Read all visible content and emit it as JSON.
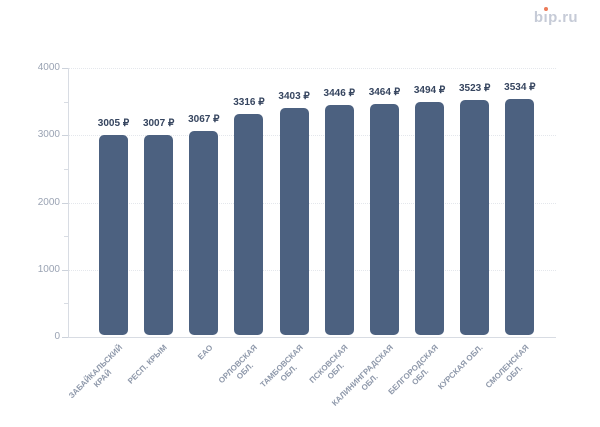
{
  "logo": {
    "text": "bip.ru",
    "parts": [
      "b",
      "ı",
      "p.ru"
    ],
    "letter_color": "#c6cbd7",
    "dot_color": "#ec7b59"
  },
  "chart_data": {
    "type": "bar",
    "title": "",
    "xlabel": "",
    "ylabel": "",
    "categories": [
      "ЗАБАЙКАЛЬСКИЙ КРАЙ",
      "РЕСП. КРЫМ",
      "ЕАО",
      "ОРЛОВСКАЯ ОБЛ.",
      "ТАМБОВСКАЯ ОБЛ.",
      "ПСКОВСКАЯ ОБЛ.",
      "КАЛИНИНГРАДСКАЯ ОБЛ.",
      "БЕЛГОРОДСКАЯ ОБЛ.",
      "КУРСКАЯ ОБЛ.",
      "СМОЛЕНСКАЯ ОБЛ."
    ],
    "category_lines": [
      [
        "ЗАБАЙКАЛЬСКИЙ",
        "КРАЙ"
      ],
      [
        "РЕСП. КРЫМ"
      ],
      [
        "ЕАО"
      ],
      [
        "ОРЛОВСКАЯ",
        "ОБЛ."
      ],
      [
        "ТАМБОВСКАЯ",
        "ОБЛ."
      ],
      [
        "ПСКОВСКАЯ",
        "ОБЛ."
      ],
      [
        "КАЛИНИНГРАДСКАЯ",
        "ОБЛ."
      ],
      [
        "БЕЛГОРОДСКАЯ",
        "ОБЛ."
      ],
      [
        "КУРСКАЯ ОБЛ."
      ],
      [
        "СМОЛЕНСКАЯ",
        "ОБЛ."
      ]
    ],
    "values": [
      3005,
      3007,
      3067,
      3316,
      3403,
      3446,
      3464,
      3494,
      3523,
      3534
    ],
    "value_labels": [
      "3005 ₽",
      "3007 ₽",
      "3067 ₽",
      "3316 ₽",
      "3403 ₽",
      "3446 ₽",
      "3464 ₽",
      "3494 ₽",
      "3523 ₽",
      "3534 ₽"
    ],
    "currency": "₽",
    "ylim": [
      0,
      4000
    ],
    "yticks": [
      0,
      1000,
      2000,
      3000,
      4000
    ],
    "minor_tick_step": 500,
    "grid": "horizontal-dotted",
    "legend": "none",
    "bar_color": "#4c6180",
    "value_label_color": "#36455f",
    "ytick_label_color": "#9aa3b3",
    "category_label_color": "#8e98aa",
    "axis_line_color": "#d8dce3",
    "major_tick_color": "#ccd2db"
  }
}
